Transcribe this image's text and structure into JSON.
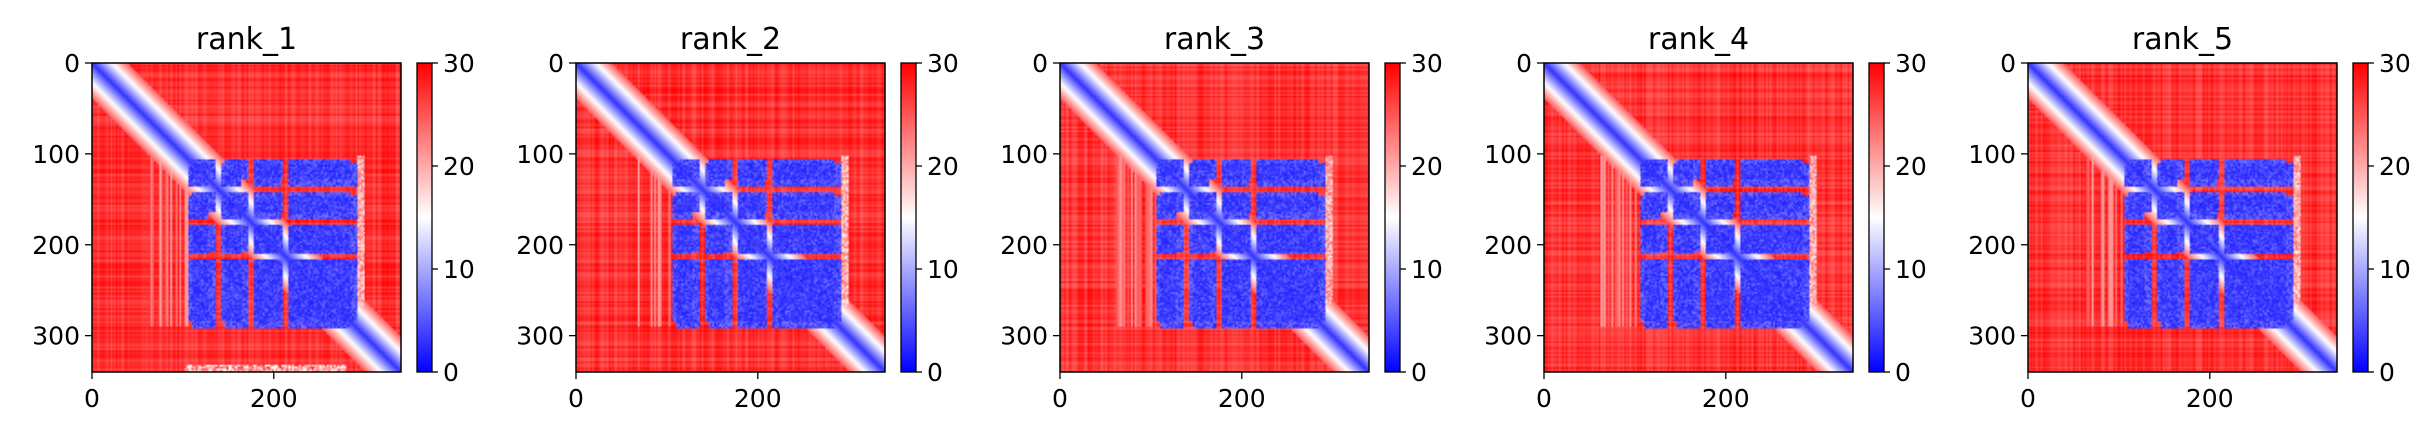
{
  "figure": {
    "colormap": "bwr",
    "colors": {
      "low": "#0000ff",
      "mid": "#ffffff",
      "high": "#ff0000",
      "frame": "#000000"
    }
  },
  "chart_data": [
    {
      "type": "heatmap",
      "title": "rank_1",
      "matrix_size": 340,
      "xlim": [
        0,
        340
      ],
      "ylim": [
        340,
        0
      ],
      "x_ticks": [
        0,
        200
      ],
      "y_ticks": [
        0,
        100,
        200,
        300
      ],
      "colorbar": {
        "range": [
          0,
          30
        ],
        "ticks": [
          0,
          10,
          20,
          30
        ]
      }
    },
    {
      "type": "heatmap",
      "title": "rank_2",
      "matrix_size": 340,
      "xlim": [
        0,
        340
      ],
      "ylim": [
        340,
        0
      ],
      "x_ticks": [
        0,
        200
      ],
      "y_ticks": [
        0,
        100,
        200,
        300
      ],
      "colorbar": {
        "range": [
          0,
          30
        ],
        "ticks": [
          0,
          10,
          20,
          30
        ]
      }
    },
    {
      "type": "heatmap",
      "title": "rank_3",
      "matrix_size": 340,
      "xlim": [
        0,
        340
      ],
      "ylim": [
        340,
        0
      ],
      "x_ticks": [
        0,
        200
      ],
      "y_ticks": [
        0,
        100,
        200,
        300
      ],
      "colorbar": {
        "range": [
          0,
          30
        ],
        "ticks": [
          0,
          10,
          20,
          30
        ]
      }
    },
    {
      "type": "heatmap",
      "title": "rank_4",
      "matrix_size": 340,
      "xlim": [
        0,
        340
      ],
      "ylim": [
        340,
        0
      ],
      "x_ticks": [
        0,
        200
      ],
      "y_ticks": [
        0,
        100,
        200,
        300
      ],
      "colorbar": {
        "range": [
          0,
          30
        ],
        "ticks": [
          0,
          10,
          20,
          30
        ]
      }
    },
    {
      "type": "heatmap",
      "title": "rank_5",
      "matrix_size": 340,
      "xlim": [
        0,
        340
      ],
      "ylim": [
        340,
        0
      ],
      "x_ticks": [
        0,
        200
      ],
      "y_ticks": [
        0,
        100,
        200,
        300
      ],
      "colorbar": {
        "range": [
          0,
          30
        ],
        "ticks": [
          0,
          10,
          20,
          30
        ]
      }
    }
  ]
}
